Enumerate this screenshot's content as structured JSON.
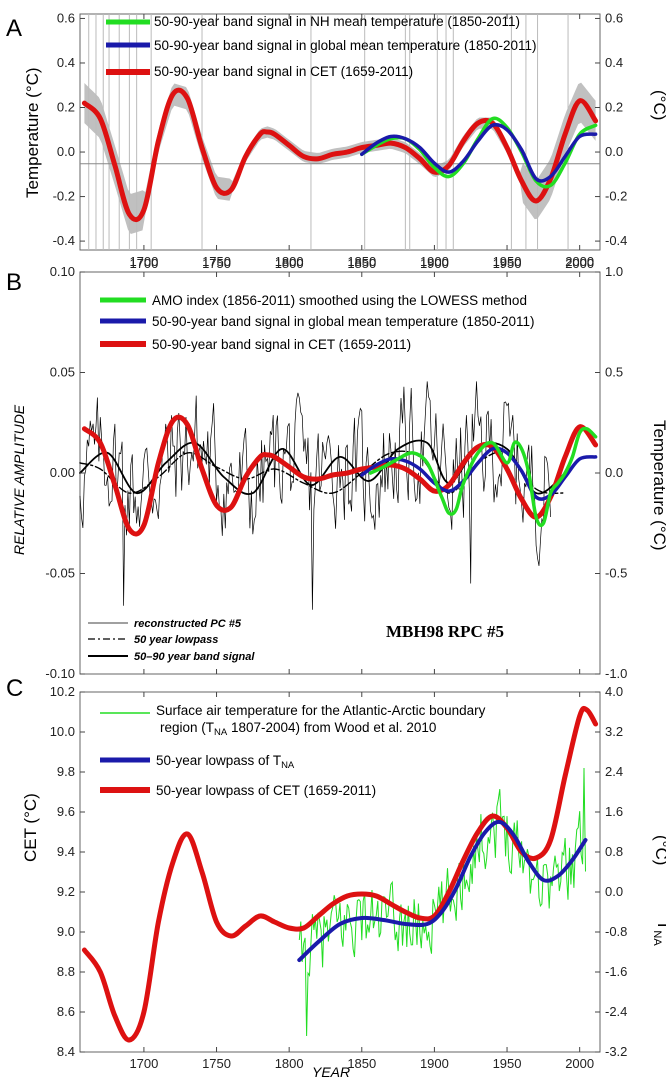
{
  "figure": {
    "panel_letters": [
      "A",
      "B",
      "C"
    ],
    "xlabel": "YEAR"
  },
  "colors": {
    "green": "#22dd22",
    "blue": "#1a1aaa",
    "red": "#dd1111",
    "band": "#c0c0c0",
    "black": "#000000"
  },
  "chart_data": [
    {
      "type": "line",
      "panel": "A",
      "ylabel": "Temperature  (°C)",
      "ylabel_right": "(°C)",
      "xlim": [
        1656,
        2014
      ],
      "ylim": [
        -0.44,
        0.62
      ],
      "x_ticks": [
        "1700",
        "1750",
        "1800",
        "1850",
        "1900",
        "1950",
        "2000"
      ],
      "y_ticks": [
        "0.6",
        "0.4",
        "0.2",
        "0.0",
        "-0.2",
        "-0.4"
      ],
      "y_ticks_right": [
        "0.6",
        "0.4",
        "0.2",
        "0.0",
        "-0.2",
        "-0.4"
      ],
      "legend": [
        "50-90-year band signal in NH mean temperature (1850-2011)",
        "50-90-year band signal in global mean temperature (1850-2011)",
        "50-90-year band signal in CET (1659-2011)"
      ],
      "series": [
        {
          "name": "50-90-year band signal in NH mean temperature (1850-2011)",
          "color": "green",
          "x": [
            1850,
            1860,
            1870,
            1880,
            1890,
            1900,
            1910,
            1920,
            1930,
            1940,
            1950,
            1960,
            1970,
            1980,
            1990,
            2000,
            2011
          ],
          "y": [
            -0.01,
            0.03,
            0.06,
            0.06,
            0.01,
            -0.07,
            -0.11,
            -0.05,
            0.06,
            0.15,
            0.11,
            0.0,
            -0.13,
            -0.15,
            -0.05,
            0.08,
            0.12
          ]
        },
        {
          "name": "50-90-year band signal in global mean temperature (1850-2011)",
          "color": "blue",
          "x": [
            1850,
            1860,
            1870,
            1880,
            1890,
            1900,
            1910,
            1920,
            1930,
            1940,
            1950,
            1960,
            1970,
            1980,
            1990,
            2000,
            2011
          ],
          "y": [
            -0.01,
            0.04,
            0.07,
            0.06,
            0.02,
            -0.05,
            -0.09,
            -0.04,
            0.05,
            0.12,
            0.1,
            0.01,
            -0.12,
            -0.11,
            -0.02,
            0.07,
            0.08
          ]
        },
        {
          "name": "50-90-year band signal in CET (1659-2011)",
          "color": "red",
          "x": [
            1659,
            1670,
            1680,
            1690,
            1700,
            1710,
            1720,
            1730,
            1740,
            1750,
            1760,
            1770,
            1780,
            1785,
            1790,
            1800,
            1810,
            1820,
            1830,
            1840,
            1850,
            1860,
            1870,
            1880,
            1890,
            1900,
            1910,
            1920,
            1930,
            1940,
            1950,
            1960,
            1970,
            1980,
            1990,
            2000,
            2011
          ],
          "y": [
            0.22,
            0.15,
            -0.06,
            -0.28,
            -0.26,
            0.05,
            0.26,
            0.24,
            0.02,
            -0.16,
            -0.17,
            -0.02,
            0.08,
            0.09,
            0.08,
            0.03,
            -0.02,
            -0.03,
            -0.01,
            0.0,
            0.02,
            0.03,
            0.04,
            0.02,
            -0.03,
            -0.09,
            -0.06,
            0.05,
            0.13,
            0.13,
            0.02,
            -0.13,
            -0.22,
            -0.12,
            0.08,
            0.23,
            0.14
          ]
        }
      ]
    },
    {
      "type": "line",
      "panel": "B",
      "ylabel": "RELATIVE AMPLITUDE",
      "ylabel_right": "Temperature  (°C)",
      "xlim": [
        1656,
        2014
      ],
      "ylim": [
        -0.1,
        0.1
      ],
      "ylim_right": [
        -1.0,
        1.0
      ],
      "y_ticks": [
        "0.10",
        "0.05",
        "0.00",
        "-0.05",
        "-0.10"
      ],
      "y_ticks_right": [
        "1.0",
        "0.5",
        "0.0",
        "-0.5",
        "-1.0"
      ],
      "legend": [
        "AMO index (1856-2011) smoothed using the LOWESS method",
        "50-90-year band signal in global mean temperature (1850-2011)",
        "50-90-year band signal in CET (1659-2011)"
      ],
      "inner_legend": [
        "reconstructed PC #5",
        "50 year lowpass",
        "50–90 year band signal"
      ],
      "annotation": "MBH98 RPC #5",
      "series": [
        {
          "name": "AMO index (1856-2011) smoothed using the LOWESS method",
          "color": "green",
          "x": [
            1856,
            1865,
            1875,
            1885,
            1895,
            1905,
            1910,
            1915,
            1920,
            1930,
            1940,
            1950,
            1955,
            1960,
            1965,
            1970,
            1975,
            1980,
            1985,
            1990,
            1995,
            2000,
            2005,
            2011
          ],
          "y": [
            0.0,
            0.03,
            0.07,
            0.1,
            0.05,
            -0.12,
            -0.2,
            -0.18,
            -0.05,
            0.1,
            0.15,
            0.05,
            0.15,
            0.12,
            0.0,
            -0.22,
            -0.25,
            -0.1,
            -0.05,
            0.0,
            0.08,
            0.2,
            0.22,
            0.18
          ]
        },
        {
          "name": "50-90-year band signal in global mean temperature (1850-2011)",
          "color": "blue",
          "x": [
            1850,
            1860,
            1870,
            1880,
            1890,
            1900,
            1910,
            1920,
            1930,
            1940,
            1950,
            1960,
            1970,
            1980,
            1990,
            2000,
            2011
          ],
          "y": [
            -0.01,
            0.04,
            0.07,
            0.06,
            0.02,
            -0.05,
            -0.09,
            -0.04,
            0.05,
            0.12,
            0.1,
            0.01,
            -0.12,
            -0.11,
            -0.02,
            0.07,
            0.08
          ]
        },
        {
          "name": "50-90-year band signal in CET (1659-2011)",
          "color": "red",
          "x": [
            1659,
            1670,
            1680,
            1690,
            1700,
            1710,
            1720,
            1730,
            1740,
            1750,
            1760,
            1770,
            1780,
            1785,
            1790,
            1800,
            1810,
            1820,
            1830,
            1840,
            1850,
            1860,
            1870,
            1880,
            1890,
            1900,
            1910,
            1920,
            1930,
            1940,
            1950,
            1960,
            1970,
            1980,
            1990,
            2000,
            2011
          ],
          "y": [
            0.22,
            0.15,
            -0.06,
            -0.28,
            -0.26,
            0.05,
            0.26,
            0.24,
            0.02,
            -0.16,
            -0.17,
            -0.02,
            0.08,
            0.09,
            0.08,
            0.03,
            -0.02,
            -0.03,
            -0.01,
            0.0,
            0.02,
            0.03,
            0.04,
            0.02,
            -0.03,
            -0.09,
            -0.06,
            0.05,
            0.13,
            0.13,
            0.02,
            -0.13,
            -0.22,
            -0.12,
            0.08,
            0.23,
            0.14
          ]
        },
        {
          "name": "50 year lowpass",
          "color": "black",
          "x": [
            1656,
            1670,
            1690,
            1710,
            1730,
            1750,
            1770,
            1790,
            1810,
            1830,
            1850,
            1870,
            1890,
            1910,
            1930,
            1950,
            1970,
            1990
          ],
          "y": [
            0.005,
            0.002,
            -0.01,
            -0.002,
            0.01,
            0.003,
            -0.003,
            0.002,
            -0.005,
            -0.01,
            0.0,
            0.01,
            0.008,
            -0.01,
            0.005,
            0.01,
            -0.008,
            -0.01
          ]
        },
        {
          "name": "50–90 year band signal",
          "color": "black",
          "x": [
            1656,
            1675,
            1695,
            1715,
            1735,
            1755,
            1775,
            1795,
            1815,
            1835,
            1855,
            1875,
            1895,
            1910,
            1930,
            1950,
            1970,
            1990
          ],
          "y": [
            0.0,
            0.01,
            -0.01,
            0.005,
            0.015,
            -0.002,
            -0.01,
            0.012,
            -0.006,
            0.008,
            -0.004,
            0.012,
            0.015,
            -0.005,
            0.013,
            0.012,
            -0.01,
            0.0
          ]
        }
      ]
    },
    {
      "type": "line",
      "panel": "C",
      "ylabel": "CET  (°C)",
      "ylabel_right": "T",
      "ylabel_right_sub": "NA",
      "ylabel_right_unit": "(°C)",
      "xlim": [
        1656,
        2014
      ],
      "ylim": [
        8.4,
        10.2
      ],
      "ylim_right": [
        -3.2,
        4.0
      ],
      "x_ticks": [
        "1700",
        "1750",
        "1800",
        "1850",
        "1900",
        "1950",
        "2000"
      ],
      "y_ticks": [
        "10.2",
        "10.0",
        "9.8",
        "9.6",
        "9.4",
        "9.2",
        "9.0",
        "8.8",
        "8.6",
        "8.4"
      ],
      "y_ticks_right": [
        "4.0",
        "3.2",
        "2.4",
        "1.6",
        "0.8",
        "0.0",
        "-0.8",
        "-1.6",
        "-2.4",
        "-3.2"
      ],
      "legend": [
        "Surface air temperature for the Atlantic-Arctic boundary",
        "region (T",
        "NA",
        " 1807-2004) from Wood et al. 2010",
        "50-year lowpass of T",
        "50-year lowpass of CET (1659-2011)"
      ],
      "series": [
        {
          "name": "50-year lowpass of T",
          "color": "blue",
          "x": [
            1807,
            1820,
            1835,
            1850,
            1865,
            1880,
            1895,
            1905,
            1915,
            1925,
            1935,
            1945,
            1955,
            1965,
            1975,
            1985,
            1995,
            2004
          ],
          "y": [
            8.86,
            8.95,
            9.04,
            9.07,
            9.06,
            9.04,
            9.04,
            9.1,
            9.22,
            9.38,
            9.5,
            9.55,
            9.48,
            9.35,
            9.26,
            9.28,
            9.36,
            9.46
          ]
        },
        {
          "name": "50-year lowpass of CET (1659-2011)",
          "color": "red",
          "x": [
            1659,
            1670,
            1680,
            1690,
            1700,
            1710,
            1720,
            1730,
            1740,
            1750,
            1760,
            1770,
            1780,
            1790,
            1800,
            1810,
            1820,
            1830,
            1840,
            1850,
            1860,
            1870,
            1880,
            1890,
            1900,
            1910,
            1920,
            1930,
            1940,
            1950,
            1960,
            1970,
            1980,
            1990,
            2000,
            2005,
            2011
          ],
          "y": [
            8.91,
            8.8,
            8.58,
            8.46,
            8.6,
            9.05,
            9.35,
            9.49,
            9.3,
            9.05,
            8.98,
            9.03,
            9.08,
            9.05,
            9.02,
            9.02,
            9.08,
            9.14,
            9.18,
            9.19,
            9.18,
            9.14,
            9.1,
            9.07,
            9.08,
            9.2,
            9.36,
            9.5,
            9.58,
            9.52,
            9.4,
            9.37,
            9.46,
            9.78,
            10.08,
            10.11,
            10.04
          ]
        }
      ]
    }
  ]
}
